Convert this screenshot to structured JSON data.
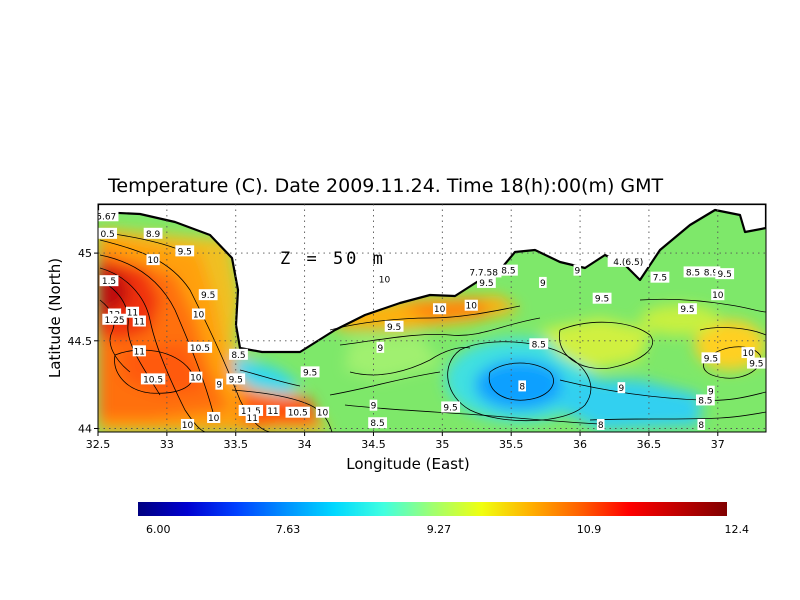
{
  "title": "Temperature (C). Date 2009.11.24. Time 18(h):00(m) GMT",
  "depth_label": "Z = 50 m",
  "xlabel": "Longitude (East)",
  "ylabel": "Latitude (North)",
  "x_ticks": [
    {
      "value": 32.5,
      "label": "32.5"
    },
    {
      "value": 33,
      "label": "33"
    },
    {
      "value": 33.5,
      "label": "33.5"
    },
    {
      "value": 34,
      "label": "34"
    },
    {
      "value": 34.5,
      "label": "34.5"
    },
    {
      "value": 35,
      "label": "35"
    },
    {
      "value": 35.5,
      "label": "35.5"
    },
    {
      "value": 36,
      "label": "36"
    },
    {
      "value": 36.5,
      "label": "36.5"
    },
    {
      "value": 37,
      "label": "37"
    }
  ],
  "y_ticks": [
    {
      "value": 44,
      "label": "44"
    },
    {
      "value": 44.5,
      "label": "44.5"
    },
    {
      "value": 45,
      "label": "45"
    }
  ],
  "xlim": [
    32.5,
    37.35
  ],
  "ylim": [
    43.98,
    45.28
  ],
  "colorbar": {
    "min": 6.0,
    "max": 12.4,
    "tick_labels": [
      {
        "value": 6.0,
        "label": "6.00"
      },
      {
        "value": 7.63,
        "label": "7.63"
      },
      {
        "value": 9.27,
        "label": "9.27"
      },
      {
        "value": 10.9,
        "label": "10.9"
      },
      {
        "value": 12.4,
        "label": "12.4"
      }
    ],
    "colors": [
      "#000080",
      "#0000d0",
      "#0040ff",
      "#0090ff",
      "#00d8ff",
      "#40ffe0",
      "#a0ff70",
      "#f0ff10",
      "#ffb000",
      "#ff6000",
      "#ff0000",
      "#c00000",
      "#800000"
    ]
  },
  "contour_labels": [
    {
      "lon": 32.56,
      "lat": 45.21,
      "text": "5.67"
    },
    {
      "lon": 32.57,
      "lat": 45.11,
      "text": "0.5"
    },
    {
      "lon": 32.9,
      "lat": 45.11,
      "text": "8.9"
    },
    {
      "lon": 32.58,
      "lat": 44.84,
      "text": "1.5"
    },
    {
      "lon": 32.62,
      "lat": 44.65,
      "text": "12"
    },
    {
      "lon": 32.62,
      "lat": 44.62,
      "text": "1.25"
    },
    {
      "lon": 32.75,
      "lat": 44.66,
      "text": "11"
    },
    {
      "lon": 32.8,
      "lat": 44.61,
      "text": "11"
    },
    {
      "lon": 32.9,
      "lat": 44.96,
      "text": "10"
    },
    {
      "lon": 33.13,
      "lat": 45.01,
      "text": "9.5"
    },
    {
      "lon": 33.3,
      "lat": 44.76,
      "text": "9.5"
    },
    {
      "lon": 33.23,
      "lat": 44.65,
      "text": "10"
    },
    {
      "lon": 32.8,
      "lat": 44.44,
      "text": "11"
    },
    {
      "lon": 33.24,
      "lat": 44.46,
      "text": "10.5"
    },
    {
      "lon": 33.21,
      "lat": 44.29,
      "text": "10"
    },
    {
      "lon": 32.9,
      "lat": 44.28,
      "text": "10.5"
    },
    {
      "lon": 33.52,
      "lat": 44.42,
      "text": "8.5"
    },
    {
      "lon": 33.5,
      "lat": 44.28,
      "text": "9.5"
    },
    {
      "lon": 33.38,
      "lat": 44.25,
      "text": "9"
    },
    {
      "lon": 33.61,
      "lat": 44.1,
      "text": "11.5"
    },
    {
      "lon": 33.77,
      "lat": 44.1,
      "text": "11"
    },
    {
      "lon": 33.95,
      "lat": 44.09,
      "text": "10.5"
    },
    {
      "lon": 33.62,
      "lat": 44.06,
      "text": "11"
    },
    {
      "lon": 33.34,
      "lat": 44.06,
      "text": "10"
    },
    {
      "lon": 33.15,
      "lat": 44.02,
      "text": "10"
    },
    {
      "lon": 34.13,
      "lat": 44.09,
      "text": "10"
    },
    {
      "lon": 34.04,
      "lat": 44.32,
      "text": "9.5"
    },
    {
      "lon": 34.58,
      "lat": 44.85,
      "text": "10"
    },
    {
      "lon": 34.98,
      "lat": 44.68,
      "text": "10"
    },
    {
      "lon": 35.21,
      "lat": 44.7,
      "text": "10"
    },
    {
      "lon": 34.65,
      "lat": 44.58,
      "text": "9.5"
    },
    {
      "lon": 34.55,
      "lat": 44.46,
      "text": "9"
    },
    {
      "lon": 35.3,
      "lat": 44.89,
      "text": "7.7.58"
    },
    {
      "lon": 35.48,
      "lat": 44.9,
      "text": "8.5"
    },
    {
      "lon": 35.32,
      "lat": 44.83,
      "text": "9.5"
    },
    {
      "lon": 35.73,
      "lat": 44.83,
      "text": "9"
    },
    {
      "lon": 35.98,
      "lat": 44.9,
      "text": "9"
    },
    {
      "lon": 35.7,
      "lat": 44.48,
      "text": "8.5"
    },
    {
      "lon": 35.58,
      "lat": 44.24,
      "text": "8"
    },
    {
      "lon": 34.5,
      "lat": 44.13,
      "text": "9"
    },
    {
      "lon": 35.06,
      "lat": 44.12,
      "text": "9.5"
    },
    {
      "lon": 34.53,
      "lat": 44.03,
      "text": "8.5"
    },
    {
      "lon": 36.16,
      "lat": 44.74,
      "text": "9.5"
    },
    {
      "lon": 36.15,
      "lat": 44.02,
      "text": "8"
    },
    {
      "lon": 36.35,
      "lat": 44.95,
      "text": "4.(6.5)"
    },
    {
      "lon": 36.58,
      "lat": 44.86,
      "text": "7.5"
    },
    {
      "lon": 36.82,
      "lat": 44.89,
      "text": "8.5"
    },
    {
      "lon": 36.95,
      "lat": 44.89,
      "text": "8.9"
    },
    {
      "lon": 37.05,
      "lat": 44.88,
      "text": "9.5"
    },
    {
      "lon": 36.78,
      "lat": 44.68,
      "text": "9.5"
    },
    {
      "lon": 37.0,
      "lat": 44.76,
      "text": "10"
    },
    {
      "lon": 36.95,
      "lat": 44.4,
      "text": "9.5"
    },
    {
      "lon": 37.22,
      "lat": 44.43,
      "text": "10"
    },
    {
      "lon": 37.28,
      "lat": 44.37,
      "text": "9.5"
    },
    {
      "lon": 36.3,
      "lat": 44.23,
      "text": "9"
    },
    {
      "lon": 36.95,
      "lat": 44.21,
      "text": "9"
    },
    {
      "lon": 36.91,
      "lat": 44.16,
      "text": "8.5"
    },
    {
      "lon": 36.88,
      "lat": 44.02,
      "text": "8"
    }
  ]
}
